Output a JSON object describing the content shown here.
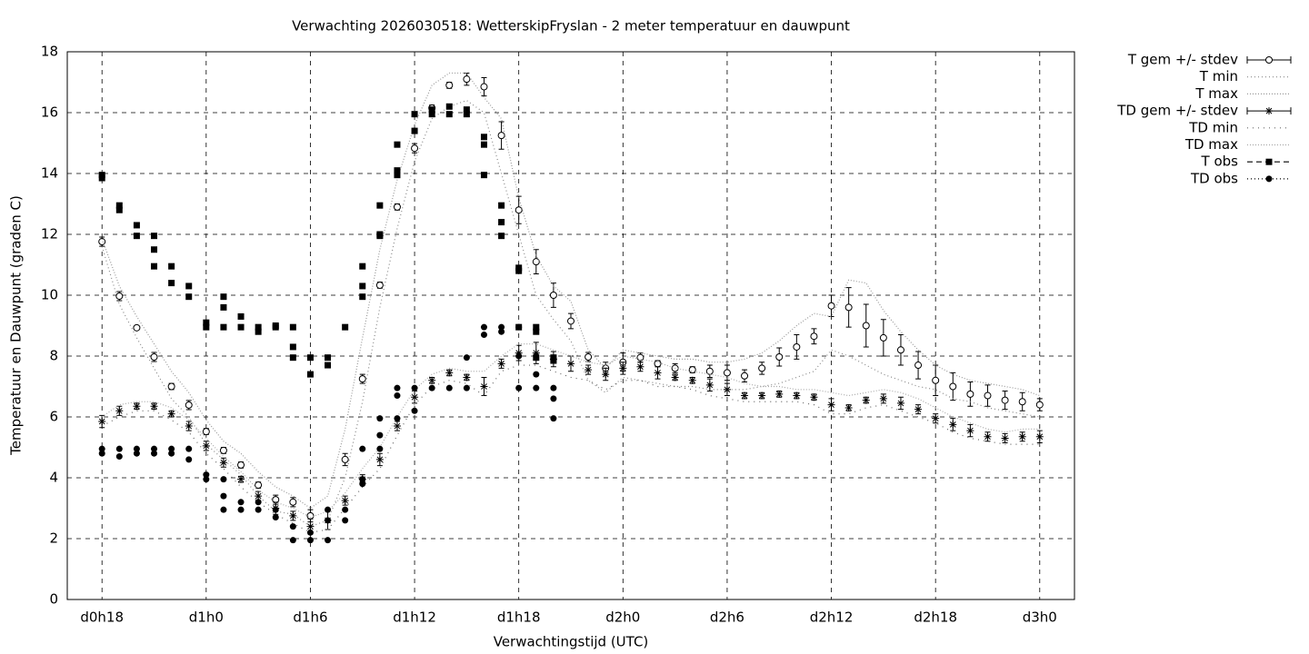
{
  "chart_data": {
    "type": "line",
    "title": "Verwachting 2026030518: WetterskipFryslan - 2 meter temperatuur en dauwpunt",
    "xlabel": "Verwachtingstijd (UTC)",
    "ylabel": "Temperatuur en Dauwpunt (graden C)",
    "xlim": [
      16,
      74
    ],
    "ylim": [
      0,
      18
    ],
    "xticks": [
      {
        "value": 18,
        "label": "d0h18"
      },
      {
        "value": 24,
        "label": "d1h0"
      },
      {
        "value": 30,
        "label": "d1h6"
      },
      {
        "value": 36,
        "label": "d1h12"
      },
      {
        "value": 42,
        "label": "d1h18"
      },
      {
        "value": 48,
        "label": "d2h0"
      },
      {
        "value": 54,
        "label": "d2h6"
      },
      {
        "value": 60,
        "label": "d2h12"
      },
      {
        "value": 66,
        "label": "d2h18"
      },
      {
        "value": 72,
        "label": "d3h0"
      }
    ],
    "yticks": [
      0,
      2,
      4,
      6,
      8,
      10,
      12,
      14,
      16,
      18
    ],
    "grid": true,
    "legend": "right",
    "x": [
      18,
      19,
      20,
      21,
      22,
      23,
      24,
      25,
      26,
      27,
      28,
      29,
      30,
      31,
      32,
      33,
      34,
      35,
      36,
      37,
      38,
      39,
      40,
      41,
      42,
      43,
      44,
      45,
      46,
      47,
      48,
      49,
      50,
      51,
      52,
      53,
      54,
      55,
      56,
      57,
      58,
      59,
      60,
      61,
      62,
      63,
      64,
      65,
      66,
      67,
      68,
      69,
      70,
      71,
      72
    ],
    "series": [
      {
        "name": "T gem +/- stdev",
        "type": "errorbar",
        "marker": "circle-open",
        "color": "#000000",
        "values": [
          11.76,
          9.97,
          8.93,
          7.97,
          7.0,
          6.39,
          5.52,
          4.9,
          4.42,
          3.76,
          3.28,
          3.2,
          2.75,
          null,
          4.6,
          7.25,
          10.33,
          12.9,
          14.83,
          16.15,
          16.9,
          17.1,
          16.85,
          15.25,
          12.8,
          11.1,
          10.0,
          9.15,
          7.97,
          7.6,
          7.8,
          7.95,
          7.75,
          7.6,
          7.55,
          7.5,
          7.45,
          7.35,
          7.6,
          7.97,
          8.3,
          8.65,
          9.65,
          9.6,
          9.0,
          8.6,
          8.2,
          7.7,
          7.2,
          7.0,
          6.75,
          6.7,
          6.55,
          6.5,
          6.4
        ],
        "errors": [
          0.15,
          0.15,
          0.05,
          0.15,
          0.1,
          0.15,
          0.1,
          0.1,
          0.1,
          0.1,
          0.15,
          0.15,
          0.2,
          null,
          0.2,
          0.15,
          0.1,
          0.1,
          0.15,
          0.1,
          0.1,
          0.2,
          0.3,
          0.45,
          0.45,
          0.4,
          0.4,
          0.25,
          0.15,
          0.2,
          0.3,
          0.15,
          0.1,
          0.15,
          0.1,
          0.2,
          0.25,
          0.2,
          0.2,
          0.3,
          0.4,
          0.25,
          0.35,
          0.65,
          0.7,
          0.6,
          0.5,
          0.45,
          0.5,
          0.45,
          0.4,
          0.35,
          0.3,
          0.3,
          0.2
        ]
      },
      {
        "name": "T min",
        "type": "line",
        "dash": "1,3",
        "color": "#888888",
        "values": [
          11.6,
          9.7,
          8.6,
          7.6,
          6.6,
          6.0,
          5.1,
          4.6,
          4.1,
          3.4,
          2.9,
          2.8,
          2.4,
          2.6,
          4.0,
          6.5,
          9.6,
          12.2,
          14.4,
          15.8,
          16.2,
          16.4,
          16.0,
          14.0,
          12.0,
          10.0,
          9.2,
          8.5,
          7.2,
          6.8,
          7.3,
          7.2,
          7.1,
          7.0,
          7.0,
          6.9,
          6.9,
          6.9,
          7.0,
          7.1,
          7.3,
          7.5,
          8.2,
          8.0,
          7.7,
          7.4,
          7.2,
          7.0,
          6.9,
          6.6,
          6.5,
          6.3,
          6.2,
          6.1,
          6.0
        ]
      },
      {
        "name": "T max",
        "type": "line",
        "dash": "1,2",
        "color": "#999999",
        "values": [
          11.85,
          10.3,
          9.3,
          8.4,
          7.5,
          6.8,
          5.9,
          5.2,
          4.8,
          4.2,
          3.7,
          3.4,
          3.0,
          3.4,
          5.6,
          8.6,
          11.5,
          13.8,
          15.6,
          16.9,
          17.3,
          17.3,
          16.5,
          15.8,
          13.2,
          11.3,
          10.3,
          9.8,
          8.2,
          7.6,
          8.2,
          8.1,
          8.0,
          7.9,
          7.9,
          7.8,
          7.8,
          7.9,
          8.1,
          8.5,
          9.0,
          9.4,
          9.3,
          10.5,
          10.4,
          9.5,
          8.8,
          8.2,
          7.7,
          7.4,
          7.2,
          7.1,
          7.0,
          6.9,
          6.7
        ]
      },
      {
        "name": "TD gem +/- stdev",
        "type": "errorbar",
        "marker": "star",
        "color": "#000000",
        "values": [
          5.85,
          6.2,
          6.35,
          6.35,
          6.1,
          5.7,
          5.05,
          4.5,
          3.95,
          3.4,
          3.0,
          2.75,
          2.4,
          2.6,
          3.25,
          3.95,
          4.6,
          5.7,
          6.65,
          7.2,
          7.45,
          7.3,
          7.0,
          7.75,
          8.1,
          8.1,
          7.9,
          7.75,
          7.55,
          7.4,
          7.6,
          7.65,
          7.45,
          7.3,
          7.2,
          7.05,
          6.9,
          6.7,
          6.7,
          6.75,
          6.7,
          6.65,
          6.4,
          6.3,
          6.55,
          6.6,
          6.45,
          6.25,
          5.95,
          5.75,
          5.55,
          5.35,
          5.3,
          5.35,
          5.35
        ],
        "errors": [
          0.2,
          0.15,
          0.1,
          0.1,
          0.1,
          0.15,
          0.15,
          0.15,
          0.1,
          0.15,
          0.2,
          0.15,
          0.25,
          0.3,
          0.15,
          0.15,
          0.2,
          0.15,
          0.2,
          0.1,
          0.1,
          0.1,
          0.3,
          0.15,
          0.25,
          0.35,
          0.25,
          0.25,
          0.15,
          0.2,
          0.2,
          0.15,
          0.2,
          0.1,
          0.1,
          0.2,
          0.2,
          0.1,
          0.1,
          0.1,
          0.1,
          0.1,
          0.2,
          0.1,
          0.1,
          0.15,
          0.2,
          0.15,
          0.15,
          0.2,
          0.2,
          0.15,
          0.15,
          0.15,
          0.2
        ]
      },
      {
        "name": "TD min",
        "type": "line",
        "dash": "1,5",
        "color": "#666666",
        "values": [
          5.7,
          6.0,
          6.2,
          6.2,
          5.9,
          5.5,
          4.8,
          4.3,
          3.7,
          3.2,
          2.8,
          2.5,
          2.2,
          2.3,
          3.0,
          3.7,
          4.3,
          5.4,
          6.4,
          7.0,
          7.2,
          7.1,
          6.7,
          7.5,
          7.7,
          7.7,
          7.5,
          7.3,
          7.2,
          6.9,
          7.2,
          7.2,
          7.0,
          7.0,
          6.9,
          6.7,
          6.6,
          6.5,
          6.5,
          6.5,
          6.5,
          6.4,
          6.1,
          6.1,
          6.3,
          6.4,
          6.2,
          6.0,
          5.8,
          5.5,
          5.3,
          5.2,
          5.1,
          5.1,
          5.1
        ]
      },
      {
        "name": "TD max",
        "type": "line",
        "dash": "1,2",
        "color": "#aaaaaa",
        "values": [
          6.0,
          6.4,
          6.5,
          6.5,
          6.3,
          5.9,
          5.3,
          4.7,
          4.2,
          3.6,
          3.2,
          3.0,
          2.7,
          2.9,
          3.5,
          4.3,
          5.0,
          6.0,
          6.9,
          7.4,
          7.6,
          7.5,
          7.5,
          8.0,
          8.4,
          8.4,
          8.2,
          8.0,
          7.8,
          7.7,
          8.0,
          7.9,
          7.8,
          7.6,
          7.5,
          7.4,
          7.3,
          7.1,
          7.0,
          7.0,
          6.9,
          6.9,
          6.8,
          6.7,
          6.8,
          6.9,
          6.8,
          6.6,
          6.3,
          6.0,
          5.8,
          5.6,
          5.5,
          5.6,
          5.6
        ]
      },
      {
        "name": "T obs",
        "type": "points",
        "marker": "square",
        "dash": "6,4",
        "color": "#000000",
        "x": [
          18,
          18,
          19,
          19,
          20,
          20,
          21,
          21,
          21,
          22,
          22,
          23,
          23,
          24,
          24,
          25,
          25,
          25,
          26,
          26,
          27,
          27,
          28,
          28,
          29,
          29,
          29,
          30,
          30,
          31,
          31,
          32,
          33,
          33,
          33,
          34,
          34,
          34,
          35,
          35,
          35,
          36,
          36,
          37,
          37,
          38,
          38,
          39,
          39,
          40,
          40,
          40,
          41,
          41,
          41,
          42,
          42,
          42,
          43,
          43,
          43,
          44,
          44
        ],
        "values": [
          13.95,
          13.85,
          12.95,
          12.8,
          12.3,
          11.95,
          11.95,
          11.5,
          10.95,
          10.95,
          10.4,
          10.3,
          9.95,
          9.1,
          8.95,
          9.95,
          9.6,
          8.95,
          9.3,
          8.95,
          8.95,
          8.8,
          8.95,
          9.0,
          8.95,
          8.3,
          7.95,
          7.95,
          7.4,
          7.95,
          7.7,
          8.95,
          10.95,
          10.3,
          9.95,
          12.95,
          12.0,
          11.95,
          14.95,
          14.1,
          13.95,
          15.95,
          15.4,
          16.1,
          15.95,
          16.2,
          15.95,
          16.1,
          15.95,
          15.2,
          14.95,
          13.95,
          12.95,
          12.4,
          11.95,
          10.9,
          10.8,
          8.95,
          8.95,
          8.8,
          7.95,
          7.95,
          7.85
        ]
      },
      {
        "name": "TD obs",
        "type": "points",
        "marker": "circle",
        "dash": "1,3",
        "color": "#000000",
        "x": [
          18,
          18,
          19,
          19,
          20,
          20,
          21,
          21,
          22,
          22,
          23,
          23,
          24,
          24,
          25,
          25,
          25,
          26,
          26,
          27,
          27,
          28,
          28,
          29,
          29,
          30,
          30,
          31,
          31,
          31,
          32,
          32,
          33,
          33,
          33,
          34,
          34,
          34,
          35,
          35,
          35,
          36,
          36,
          37,
          38,
          39,
          39,
          40,
          40,
          41,
          41,
          42,
          42,
          42,
          43,
          43,
          43,
          44,
          44,
          44
        ],
        "values": [
          4.95,
          4.8,
          4.95,
          4.7,
          4.95,
          4.8,
          4.95,
          4.8,
          4.95,
          4.8,
          4.95,
          4.6,
          4.1,
          3.95,
          3.95,
          3.4,
          2.95,
          3.2,
          2.95,
          3.2,
          2.95,
          2.95,
          2.7,
          2.4,
          1.95,
          2.2,
          1.95,
          2.95,
          2.6,
          1.95,
          2.95,
          2.6,
          4.95,
          3.95,
          3.8,
          5.95,
          5.4,
          4.95,
          6.95,
          6.7,
          5.95,
          6.95,
          6.2,
          6.95,
          6.95,
          7.95,
          6.95,
          8.95,
          8.7,
          8.95,
          8.8,
          8.95,
          8.0,
          6.95,
          8.0,
          7.4,
          6.95,
          6.95,
          6.6,
          5.95
        ]
      }
    ]
  }
}
